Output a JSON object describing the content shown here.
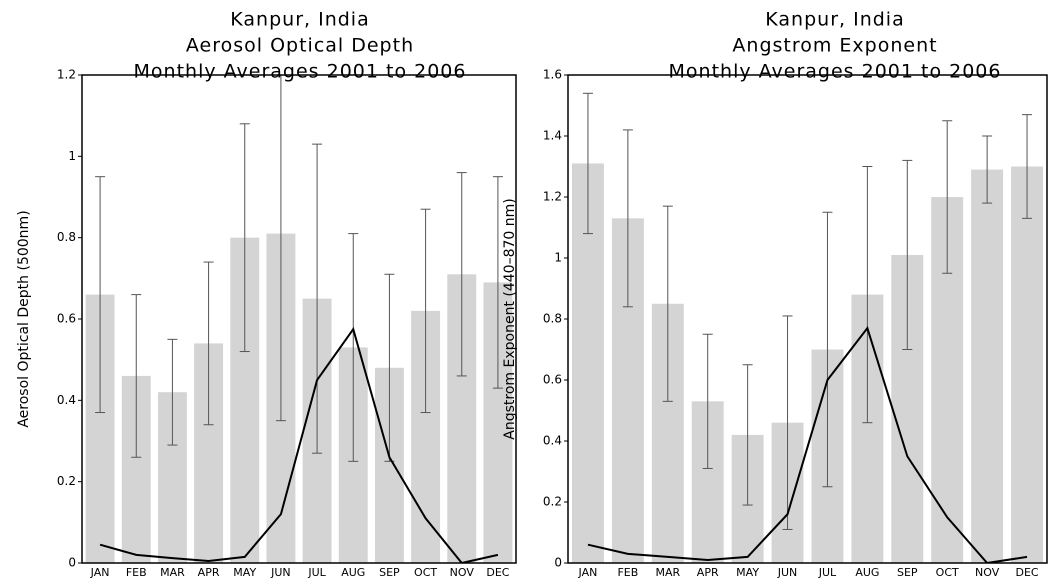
{
  "chart_data": [
    {
      "type": "bar",
      "title": [
        "Kanpur, India",
        "Aerosol Optical Depth",
        "Monthly Averages 2001 to 2006"
      ],
      "ylabel": "Aerosol Optical Depth (500nm)",
      "categories": [
        "JAN",
        "FEB",
        "MAR",
        "APR",
        "MAY",
        "JUN",
        "JUL",
        "AUG",
        "SEP",
        "OCT",
        "NOV",
        "DEC"
      ],
      "values": [
        0.66,
        0.46,
        0.42,
        0.54,
        0.8,
        0.81,
        0.65,
        0.53,
        0.48,
        0.62,
        0.71,
        0.69
      ],
      "errors": [
        0.29,
        0.2,
        0.13,
        0.2,
        0.28,
        0.46,
        0.38,
        0.28,
        0.23,
        0.25,
        0.25,
        0.26
      ],
      "line_values": [
        0.045,
        0.02,
        0.012,
        0.005,
        0.015,
        0.12,
        0.45,
        0.575,
        0.26,
        0.11,
        0.0,
        0.02
      ],
      "color": "#d4d4d4",
      "line_color": "#000000",
      "ylim": [
        0,
        1.2
      ],
      "yticks": [
        0,
        0.2,
        0.4,
        0.6,
        0.8,
        1,
        1.2
      ]
    },
    {
      "type": "bar",
      "title": [
        "Kanpur, India",
        "Angstrom Exponent",
        "Monthly Averages 2001 to 2006"
      ],
      "ylabel": "Angstrom Exponent (440–870 nm)",
      "categories": [
        "JAN",
        "FEB",
        "MAR",
        "APR",
        "MAY",
        "JUN",
        "JUL",
        "AUG",
        "SEP",
        "OCT",
        "NOV",
        "DEC"
      ],
      "values": [
        1.31,
        1.13,
        0.85,
        0.53,
        0.42,
        0.46,
        0.7,
        0.88,
        1.01,
        1.2,
        1.29,
        1.3
      ],
      "errors": [
        0.23,
        0.29,
        0.32,
        0.22,
        0.23,
        0.35,
        0.45,
        0.42,
        0.31,
        0.25,
        0.11,
        0.17
      ],
      "line_values": [
        0.06,
        0.03,
        0.02,
        0.01,
        0.02,
        0.16,
        0.6,
        0.77,
        0.35,
        0.15,
        0.0,
        0.02
      ],
      "color": "#d4d4d4",
      "line_color": "#000000",
      "ylim": [
        0,
        1.6
      ],
      "yticks": [
        0,
        0.2,
        0.4,
        0.6,
        0.8,
        1,
        1.2,
        1.4,
        1.6
      ]
    }
  ]
}
